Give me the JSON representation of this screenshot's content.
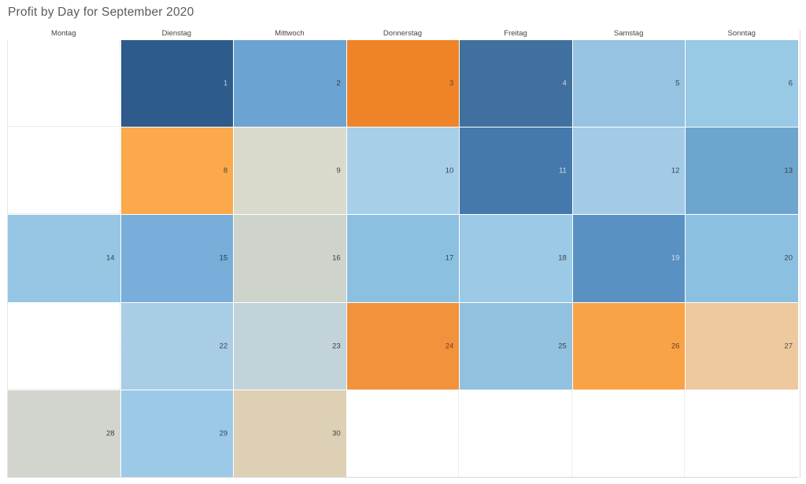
{
  "title": "Profit by Day for September 2020",
  "chart_data": {
    "type": "heatmap",
    "title": "Profit by Day for September 2020",
    "x_categories": [
      "Montag",
      "Dienstag",
      "Mittwoch",
      "Donnerstag",
      "Freitag",
      "Samstag",
      "Sonntag"
    ],
    "legend": "none",
    "grid": "calendar, 7 columns x 5 week rows, day number right-aligned in cell, fill color encodes profit",
    "weeks": [
      [
        null,
        {
          "day": "1",
          "fill": "#2d5b8c",
          "text": "#c3cfdd"
        },
        {
          "day": "2",
          "fill": "#6ba4d2",
          "text": "#2e3a46"
        },
        {
          "day": "3",
          "fill": "#ef8327",
          "text": "#74421a"
        },
        {
          "day": "4",
          "fill": "#40709f",
          "text": "#c9d4e0"
        },
        {
          "day": "5",
          "fill": "#95c3e1",
          "text": "#39434c"
        },
        {
          "day": "6",
          "fill": "#98c9e5",
          "text": "#39434c"
        }
      ],
      [
        null,
        {
          "day": "8",
          "fill": "#fba94b",
          "text": "#4d4436"
        },
        {
          "day": "9",
          "fill": "#d9dacb",
          "text": "#3f3f3f"
        },
        {
          "day": "10",
          "fill": "#a7cfe8",
          "text": "#39434c"
        },
        {
          "day": "11",
          "fill": "#4579ab",
          "text": "#cdd8e3"
        },
        {
          "day": "12",
          "fill": "#a3cbe6",
          "text": "#39434c"
        },
        {
          "day": "13",
          "fill": "#6ea5ce",
          "text": "#2e3a46"
        }
      ],
      [
        {
          "day": "14",
          "fill": "#96c6e4",
          "text": "#39434c"
        },
        {
          "day": "15",
          "fill": "#78aed9",
          "text": "#2e3a46"
        },
        {
          "day": "16",
          "fill": "#ced3cb",
          "text": "#3f3f3f"
        },
        {
          "day": "17",
          "fill": "#8cc0e1",
          "text": "#39434c"
        },
        {
          "day": "18",
          "fill": "#9cc9e6",
          "text": "#39434c"
        },
        {
          "day": "19",
          "fill": "#5a91c3",
          "text": "#d6dee8"
        },
        {
          "day": "20",
          "fill": "#8cc0e1",
          "text": "#39434c"
        }
      ],
      [
        null,
        {
          "day": "22",
          "fill": "#a9cde4",
          "text": "#39434c"
        },
        {
          "day": "23",
          "fill": "#c3d3da",
          "text": "#3f3f3f"
        },
        {
          "day": "24",
          "fill": "#f2923d",
          "text": "#74421a"
        },
        {
          "day": "25",
          "fill": "#92c2e0",
          "text": "#39434c"
        },
        {
          "day": "26",
          "fill": "#f9a347",
          "text": "#6b3f16"
        },
        {
          "day": "27",
          "fill": "#edc99d",
          "text": "#4c4c4c"
        }
      ],
      [
        {
          "day": "28",
          "fill": "#d2d5cd",
          "text": "#3f3f3f"
        },
        {
          "day": "29",
          "fill": "#9cc9e8",
          "text": "#39434c"
        },
        {
          "day": "30",
          "fill": "#ddd0b4",
          "text": "#3f3f3f"
        },
        null,
        null,
        null,
        null
      ]
    ]
  }
}
